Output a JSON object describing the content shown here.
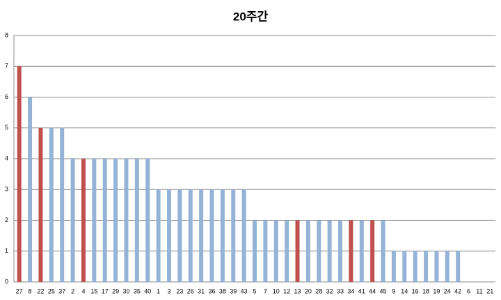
{
  "chart_data": {
    "type": "bar",
    "title": "20주간",
    "categories": [
      "27",
      "8",
      "22",
      "25",
      "37",
      "2",
      "4",
      "15",
      "17",
      "29",
      "30",
      "35",
      "40",
      "1",
      "3",
      "23",
      "26",
      "31",
      "36",
      "38",
      "39",
      "43",
      "5",
      "7",
      "10",
      "12",
      "13",
      "20",
      "28",
      "32",
      "33",
      "34",
      "41",
      "44",
      "45",
      "9",
      "14",
      "16",
      "18",
      "19",
      "24",
      "42",
      "6",
      "11",
      "21"
    ],
    "values": [
      7,
      6,
      5,
      5,
      5,
      4,
      4,
      4,
      4,
      4,
      4,
      4,
      4,
      3,
      3,
      3,
      3,
      3,
      3,
      3,
      3,
      3,
      2,
      2,
      2,
      2,
      2,
      2,
      2,
      2,
      2,
      2,
      2,
      2,
      2,
      1,
      1,
      1,
      1,
      1,
      1,
      1,
      0,
      0,
      0
    ],
    "colors": [
      "#c0504d",
      "#95b3d7",
      "#c0504d",
      "#95b3d7",
      "#95b3d7",
      "#95b3d7",
      "#c0504d",
      "#95b3d7",
      "#95b3d7",
      "#95b3d7",
      "#95b3d7",
      "#95b3d7",
      "#95b3d7",
      "#95b3d7",
      "#95b3d7",
      "#95b3d7",
      "#95b3d7",
      "#95b3d7",
      "#95b3d7",
      "#95b3d7",
      "#95b3d7",
      "#95b3d7",
      "#95b3d7",
      "#95b3d7",
      "#95b3d7",
      "#95b3d7",
      "#c0504d",
      "#95b3d7",
      "#95b3d7",
      "#95b3d7",
      "#95b3d7",
      "#c0504d",
      "#95b3d7",
      "#c0504d",
      "#95b3d7",
      "#95b3d7",
      "#95b3d7",
      "#95b3d7",
      "#95b3d7",
      "#95b3d7",
      "#95b3d7",
      "#95b3d7",
      "#95b3d7",
      "#95b3d7",
      "#95b3d7"
    ],
    "ylim": [
      0,
      8
    ],
    "yticks": [
      0,
      1,
      2,
      3,
      4,
      5,
      6,
      7,
      8
    ],
    "grid": true
  }
}
